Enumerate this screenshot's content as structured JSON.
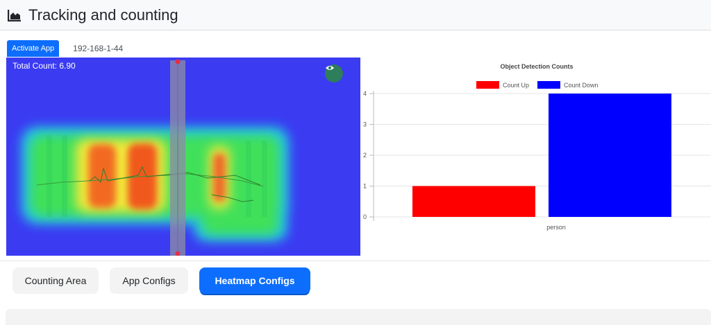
{
  "header": {
    "title": "Tracking and counting",
    "icon": "area-chart-icon"
  },
  "tabs": {
    "activate_label": "Activate App",
    "device_label": "192-168-1-44"
  },
  "video": {
    "total_count_text": "Total Count: 6.90",
    "toggle_icon": "eye-icon"
  },
  "chart_data": {
    "type": "bar",
    "title": "Object Detection Counts",
    "categories": [
      "person"
    ],
    "series": [
      {
        "name": "Count Up",
        "values": [
          1
        ],
        "color": "#ff0000"
      },
      {
        "name": "Count Down",
        "values": [
          4
        ],
        "color": "#0000ff"
      }
    ],
    "ylim": [
      0,
      4
    ],
    "yticks": [
      0,
      1,
      2,
      3,
      4
    ],
    "legend": "top",
    "grid": true
  },
  "buttons": {
    "counting_area": "Counting Area",
    "app_configs": "App Configs",
    "heatmap_configs": "Heatmap Configs"
  }
}
